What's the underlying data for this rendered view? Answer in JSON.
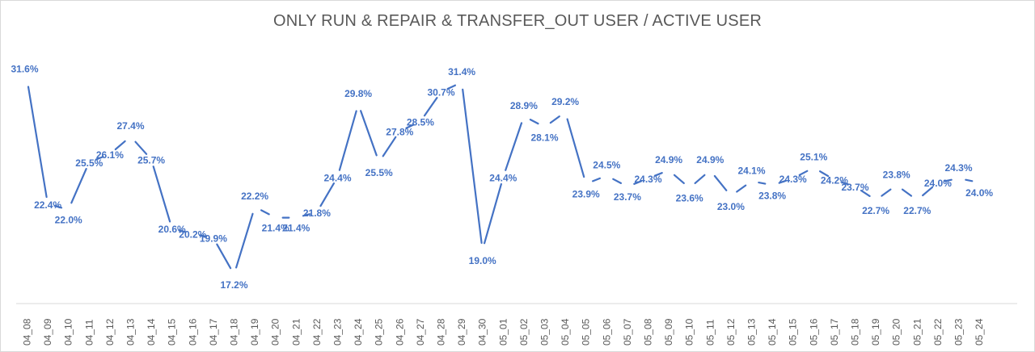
{
  "chart_data": {
    "type": "line",
    "title": "ONLY RUN & REPAIR & TRANSFER_OUT USER / ACTIVE USER",
    "xlabel": "",
    "ylabel": "",
    "ylim": [
      0.15,
      0.33
    ],
    "grid": false,
    "line_color": "#4472c4",
    "label_color": "#4472c4",
    "categories": [
      "04_08",
      "04_09",
      "04_10",
      "04_11",
      "04_12",
      "04_13",
      "04_14",
      "04_15",
      "04_16",
      "04_17",
      "04_18",
      "04_19",
      "04_20",
      "04_21",
      "04_22",
      "04_23",
      "04_24",
      "04_25",
      "04_26",
      "04_27",
      "04_28",
      "04_29",
      "04_30",
      "05_01",
      "05_02",
      "05_03",
      "05_04",
      "05_05",
      "05_06",
      "05_07",
      "05_08",
      "05_09",
      "05_10",
      "05_11",
      "05_12",
      "05_13",
      "05_14",
      "05_15",
      "05_16",
      "05_17",
      "05_18",
      "05_19",
      "05_20",
      "05_21",
      "05_22",
      "05_23",
      "05_24"
    ],
    "series": [
      {
        "values": [
          0.316,
          0.224,
          0.22,
          0.255,
          0.261,
          0.274,
          0.257,
          0.206,
          0.202,
          0.199,
          0.172,
          0.222,
          0.214,
          0.214,
          0.218,
          0.244,
          0.298,
          0.255,
          0.278,
          0.285,
          0.307,
          0.314,
          0.19,
          0.244,
          0.289,
          0.281,
          0.292,
          0.239,
          0.245,
          0.237,
          0.243,
          0.249,
          0.236,
          0.249,
          0.23,
          0.241,
          0.238,
          0.243,
          0.251,
          0.242,
          0.237,
          0.227,
          0.238,
          0.227,
          0.24,
          0.243,
          0.24
        ],
        "labels": [
          "31.6%",
          "22.4%",
          "22.0%",
          "25.5%",
          "26.1%",
          "27.4%",
          "25.7%",
          "20.6%",
          "20.2%",
          "19.9%",
          "17.2%",
          "22.2%",
          "21.4%",
          "21.4%",
          "21.8%",
          "24.4%",
          "29.8%",
          "25.5%",
          "27.8%",
          "28.5%",
          "30.7%",
          "31.4%",
          "19.0%",
          "24.4%",
          "28.9%",
          "28.1%",
          "29.2%",
          "23.9%",
          "24.5%",
          "23.7%",
          "24.3%",
          "24.9%",
          "23.6%",
          "24.9%",
          "23.0%",
          "24.1%",
          "23.8%",
          "24.3%",
          "25.1%",
          "24.2%",
          "23.7%",
          "22.7%",
          "23.8%",
          "22.7%",
          "24.0%",
          "24.3%",
          "24.0%"
        ]
      }
    ]
  }
}
